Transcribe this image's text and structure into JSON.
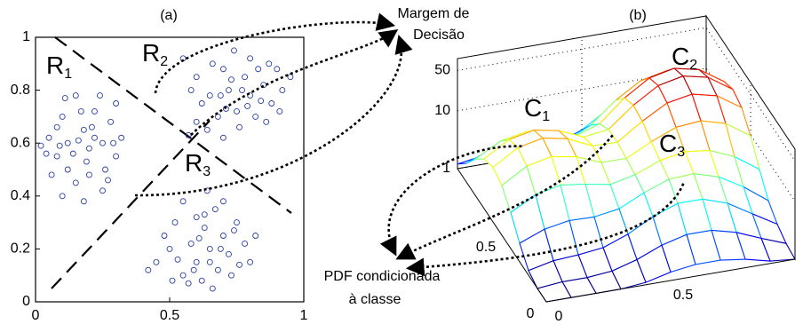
{
  "chart_data": [
    {
      "type": "scatter",
      "title": "(a)",
      "x": [
        0.05,
        0.08,
        0.1,
        0.12,
        0.15,
        0.18,
        0.2,
        0.22,
        0.25,
        0.28,
        0.3,
        0.12,
        0.15,
        0.2,
        0.25,
        0.18,
        0.06,
        0.1,
        0.3,
        0.26,
        0.08,
        0.14,
        0.17,
        0.22,
        0.04,
        0.24,
        0.32,
        0.11,
        0.19,
        0.27,
        0.02,
        0.16,
        0.21,
        0.09,
        0.29,
        0.55,
        0.6,
        0.65,
        0.7,
        0.72,
        0.75,
        0.78,
        0.8,
        0.82,
        0.85,
        0.88,
        0.9,
        0.68,
        0.62,
        0.58,
        0.74,
        0.8,
        0.86,
        0.92,
        0.95,
        0.7,
        0.76,
        0.64,
        0.83,
        0.73,
        0.66,
        0.79,
        0.87,
        0.69,
        0.6,
        0.91,
        0.77,
        0.84,
        0.71,
        0.57,
        0.45,
        0.5,
        0.52,
        0.55,
        0.58,
        0.6,
        0.62,
        0.63,
        0.65,
        0.67,
        0.68,
        0.7,
        0.72,
        0.75,
        0.78,
        0.8,
        0.48,
        0.55,
        0.6,
        0.64,
        0.7,
        0.73,
        0.57,
        0.66,
        0.42,
        0.53,
        0.61,
        0.69,
        0.74,
        0.59,
        0.65,
        0.76,
        0.82,
        0.51,
        0.63
      ],
      "values": [
        0.62,
        0.55,
        0.7,
        0.6,
        0.78,
        0.65,
        0.58,
        0.72,
        0.6,
        0.68,
        0.55,
        0.5,
        0.45,
        0.48,
        0.42,
        0.38,
        0.48,
        0.4,
        0.75,
        0.5,
        0.66,
        0.56,
        0.72,
        0.62,
        0.56,
        0.78,
        0.62,
        0.77,
        0.53,
        0.46,
        0.59,
        0.61,
        0.66,
        0.59,
        0.6,
        0.92,
        0.85,
        0.78,
        0.88,
        0.8,
        0.72,
        0.85,
        0.78,
        0.7,
        0.82,
        0.75,
        0.88,
        0.7,
        0.75,
        0.8,
        0.95,
        0.92,
        0.68,
        0.8,
        0.85,
        0.62,
        0.66,
        0.65,
        0.88,
        0.84,
        0.9,
        0.74,
        0.9,
        0.78,
        0.68,
        0.72,
        0.8,
        0.76,
        0.73,
        0.63,
        0.15,
        0.2,
        0.3,
        0.1,
        0.22,
        0.15,
        0.08,
        0.28,
        0.2,
        0.35,
        0.12,
        0.25,
        0.18,
        0.3,
        0.22,
        0.15,
        0.25,
        0.38,
        0.32,
        0.42,
        0.38,
        0.1,
        0.07,
        0.05,
        0.12,
        0.16,
        0.24,
        0.2,
        0.27,
        0.12,
        0.15,
        0.14,
        0.25,
        0.08,
        0.33
      ],
      "color": "#2b3fa0",
      "xlim": [
        0,
        1
      ],
      "ylim": [
        0,
        1
      ],
      "xticks": [
        0,
        0.5,
        1
      ],
      "yticks": [
        0,
        0.2,
        0.4,
        0.6,
        0.8,
        1
      ],
      "regions": [
        {
          "label": "R",
          "subscript": "1"
        },
        {
          "label": "R",
          "subscript": "2"
        },
        {
          "label": "R",
          "subscript": "3"
        }
      ]
    },
    {
      "type": "surface",
      "title": "(b)",
      "x": [
        0,
        0.1,
        0.2,
        0.3,
        0.4,
        0.5,
        0.6,
        0.7,
        0.8,
        0.9,
        1
      ],
      "y": [
        0,
        0.1,
        0.2,
        0.3,
        0.4,
        0.5,
        0.6,
        0.7,
        0.8,
        0.9,
        1
      ],
      "z": [
        [
          1,
          1,
          1,
          1,
          1.1,
          1.4,
          1.6,
          1.6,
          1.4,
          1.1,
          1
        ],
        [
          1,
          1.1,
          1.1,
          1.2,
          1.6,
          2.4,
          3.1,
          3.1,
          2.4,
          1.6,
          1.1
        ],
        [
          1.2,
          1.5,
          1.6,
          1.8,
          2.6,
          4.4,
          6.3,
          6.3,
          4.5,
          2.5,
          1.4
        ],
        [
          2.1,
          3.1,
          3.7,
          3.6,
          4.2,
          6.7,
          9.7,
          10.2,
          7.6,
          4.3,
          2.1
        ],
        [
          4.2,
          7.2,
          8.9,
          7.8,
          6.5,
          8.1,
          12,
          14.4,
          12.8,
          8.4,
          4.3
        ],
        [
          7.2,
          13.2,
          16.3,
          13.6,
          9.2,
          9.1,
          14.9,
          22.3,
          24.4,
          18.5,
          9.6
        ],
        [
          8.8,
          16.2,
          20,
          16.5,
          10.5,
          10.2,
          19.8,
          34.6,
          41.6,
          33,
          17.3
        ],
        [
          7.2,
          13.2,
          16.2,
          13.4,
          8.8,
          10,
          22.1,
          40.8,
          50.4,
          40.4,
          21.1
        ],
        [
          4.2,
          7.2,
          8.8,
          7.4,
          5.3,
          7.4,
          17.4,
          32.5,
          40.3,
          32.4,
          17.1
        ],
        [
          2.1,
          3.1,
          3.6,
          3.1,
          2.6,
          4.1,
          9.3,
          17.1,
          21.1,
          17.1,
          9.2
        ],
        [
          1.2,
          1.4,
          1.6,
          1.5,
          1.4,
          2,
          3.7,
          6.3,
          7.6,
          6.3,
          3.7
        ]
      ],
      "zscale": "log",
      "zlim": [
        1,
        80
      ],
      "zticks": [
        1,
        10,
        50
      ],
      "xlim": [
        0,
        1
      ],
      "ylim": [
        0,
        1
      ],
      "xticks": [
        0,
        0.5
      ],
      "yticks": [
        0,
        0.5
      ],
      "colormap": "jet",
      "peaks": [
        {
          "label": "C",
          "subscript": "1"
        },
        {
          "label": "C",
          "subscript": "2"
        },
        {
          "label": "C",
          "subscript": "3"
        }
      ]
    }
  ],
  "annotations": {
    "decision_margin": [
      "Margem de",
      "Decisão"
    ],
    "class_pdf": [
      "PDF condicionada",
      "à classe"
    ]
  }
}
